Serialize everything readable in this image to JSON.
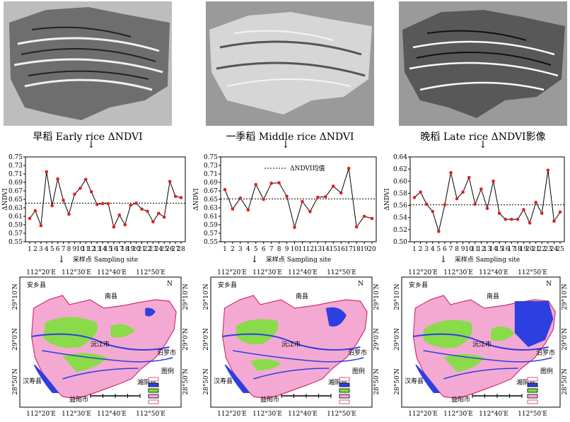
{
  "panels": [
    {
      "caption": "早稻 Early rice ΔNDVI"
    },
    {
      "caption": "一季稻 Middle rice ΔNDVI"
    },
    {
      "caption": "晚稻 Late rice ΔNDVI影像"
    }
  ],
  "chart_xlabel": "采样点 Sampling site",
  "chart_ylabel": "ΔNDVI",
  "legend_mean": "ΔNDVI均值",
  "map_labels": {
    "lon": [
      "112°20′E",
      "112°30′E",
      "112°40′E",
      "112°50′E"
    ],
    "lat": [
      "29°10′N",
      "29°0′N",
      "28°50′N"
    ],
    "anxiang": "安乡县",
    "nanxian": "南县",
    "yuanjiang": "沅江市",
    "xiangyin": "湘阴县",
    "miluo": "汨罗市",
    "hanshou": "汉寿县",
    "yiyang": "益阳市",
    "legend_title": "图例",
    "compass": "N"
  },
  "chart_data": [
    {
      "type": "line",
      "ylim": [
        0.55,
        0.75
      ],
      "yticks": [
        "0.55",
        "0.57",
        "0.59",
        "0.61",
        "0.63",
        "0.65",
        "0.67",
        "0.69",
        "0.71",
        "0.73",
        "0.75"
      ],
      "x": [
        1,
        2,
        3,
        4,
        5,
        6,
        7,
        8,
        9,
        10,
        11,
        12,
        13,
        14,
        15,
        16,
        17,
        18,
        19,
        20,
        21,
        22,
        23,
        24,
        25,
        26,
        27,
        28
      ],
      "values": [
        0.605,
        0.623,
        0.588,
        0.715,
        0.635,
        0.698,
        0.648,
        0.615,
        0.662,
        0.676,
        0.697,
        0.668,
        0.638,
        0.64,
        0.64,
        0.585,
        0.613,
        0.59,
        0.636,
        0.641,
        0.627,
        0.622,
        0.597,
        0.617,
        0.608,
        0.692,
        0.657,
        0.654
      ],
      "mean": 0.641
    },
    {
      "type": "line",
      "ylim": [
        0.55,
        0.75
      ],
      "yticks": [
        "0.55",
        "0.57",
        "0.59",
        "0.61",
        "0.63",
        "0.65",
        "0.67",
        "0.69",
        "0.71",
        "0.73",
        "0.75"
      ],
      "x": [
        1,
        2,
        3,
        4,
        5,
        6,
        7,
        8,
        9,
        10,
        11,
        12,
        13,
        14,
        15,
        16,
        17,
        18,
        19,
        20
      ],
      "values": [
        0.673,
        0.627,
        0.653,
        0.625,
        0.685,
        0.65,
        0.688,
        0.689,
        0.657,
        0.584,
        0.645,
        0.621,
        0.655,
        0.656,
        0.681,
        0.665,
        0.723,
        0.585,
        0.61,
        0.605
      ],
      "mean": 0.651
    },
    {
      "type": "line",
      "ylim": [
        0.5,
        0.64
      ],
      "yticks": [
        "0.50",
        "0.52",
        "0.54",
        "0.56",
        "0.58",
        "0.60",
        "0.62",
        "0.64"
      ],
      "x": [
        1,
        2,
        3,
        4,
        5,
        6,
        7,
        8,
        9,
        10,
        11,
        12,
        13,
        14,
        15,
        16,
        17,
        18,
        19,
        20,
        21,
        22,
        23,
        24,
        25
      ],
      "values": [
        0.573,
        0.582,
        0.562,
        0.55,
        0.517,
        0.561,
        0.614,
        0.571,
        0.582,
        0.606,
        0.562,
        0.587,
        0.555,
        0.6,
        0.547,
        0.537,
        0.537,
        0.537,
        0.553,
        0.531,
        0.565,
        0.547,
        0.618,
        0.534,
        0.549
      ],
      "mean": 0.561
    }
  ],
  "colors": {
    "pink": "#f4a9d3",
    "green": "#7ee03a",
    "blue": "#2d3fe0",
    "series": "#000000",
    "point": "#e02020"
  }
}
